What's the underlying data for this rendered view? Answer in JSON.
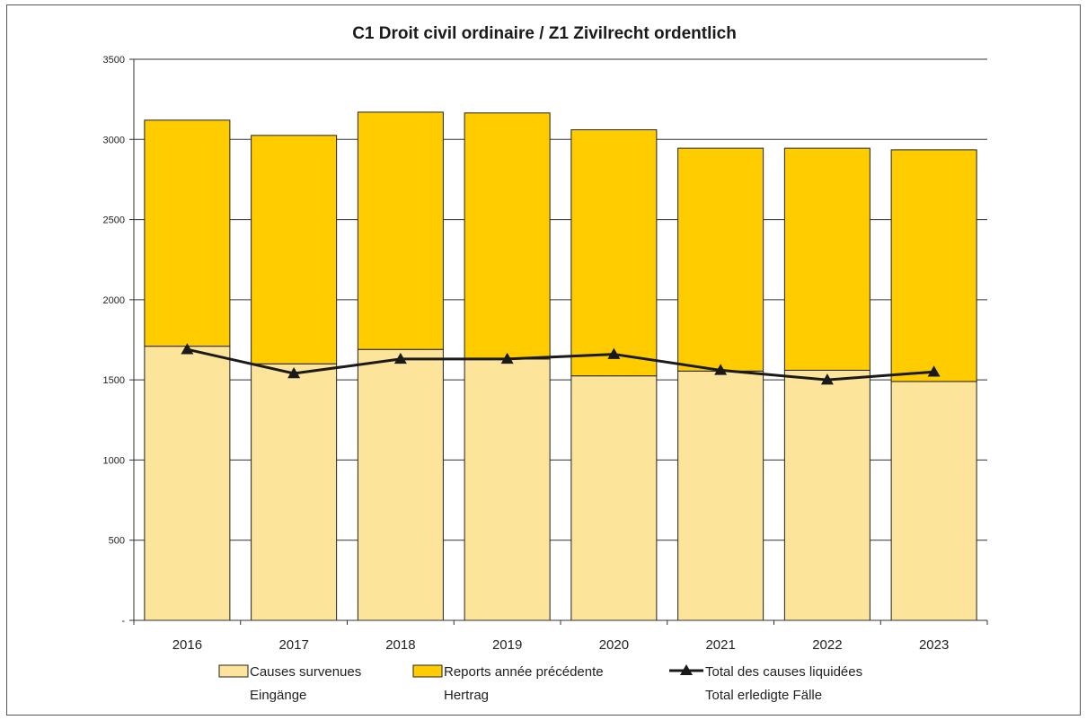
{
  "chart_data": {
    "type": "bar",
    "title": "C1 Droit civil ordinaire / Z1 Zivilrecht ordentlich",
    "categories": [
      "2016",
      "2017",
      "2018",
      "2019",
      "2020",
      "2021",
      "2022",
      "2023"
    ],
    "y_ticks": [
      "-",
      "500",
      "1000",
      "1500",
      "2000",
      "2500",
      "3000",
      "3500"
    ],
    "ylim": [
      0,
      3500
    ],
    "stacked": true,
    "grid": true,
    "legend_position": "bottom",
    "series": [
      {
        "name_line1": "Causes survenues",
        "name_line2": "Eingänge",
        "kind": "bar",
        "color": "#FDE49B",
        "values": [
          1710,
          1600,
          1690,
          1630,
          1525,
          1555,
          1560,
          1490
        ]
      },
      {
        "name_line1": "Reports année précédente",
        "name_line2": "Hertrag",
        "kind": "bar",
        "color": "#FFCC00",
        "values": [
          1410,
          1425,
          1480,
          1535,
          1535,
          1390,
          1385,
          1445
        ]
      },
      {
        "name_line1": "Total des causes liquidées",
        "name_line2": "Total erledigte Fälle",
        "kind": "line",
        "color": "#1a1a1a",
        "marker": "triangle",
        "values": [
          1690,
          1540,
          1630,
          1630,
          1660,
          1560,
          1500,
          1550
        ]
      }
    ]
  }
}
